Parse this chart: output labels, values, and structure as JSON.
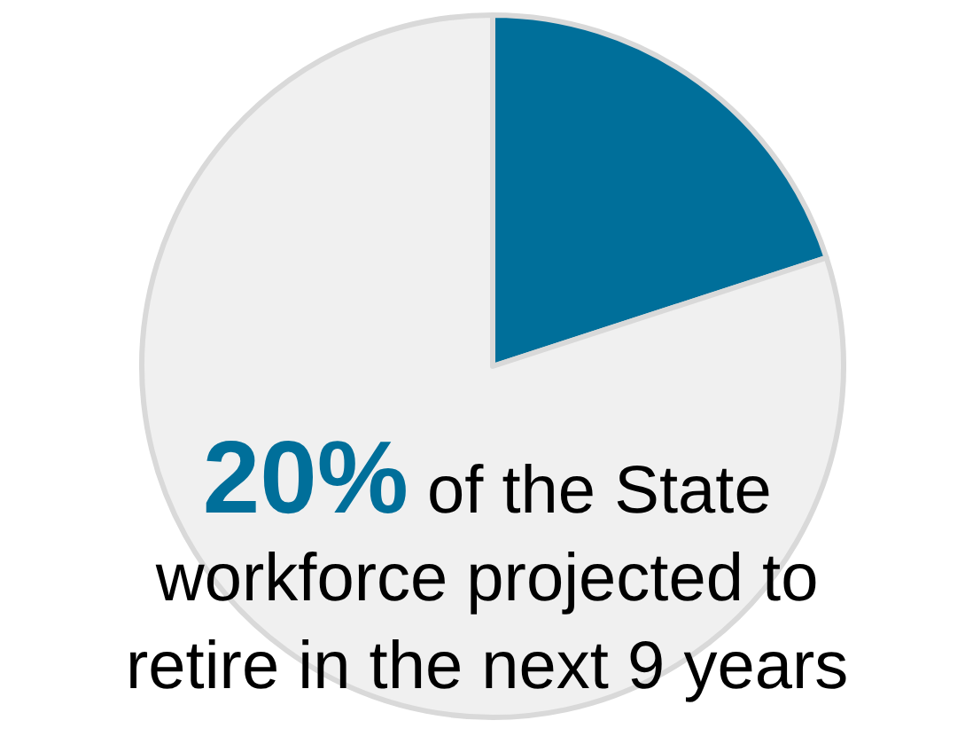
{
  "chart_data": {
    "type": "pie",
    "categories": [
      null,
      null
    ],
    "values": [
      20,
      80
    ],
    "colors": [
      "#006f9a",
      "#f0f0f0"
    ],
    "annotations": [
      "20%",
      "of the State\nworkforce projected to\nretire in the next 9 years"
    ]
  }
}
